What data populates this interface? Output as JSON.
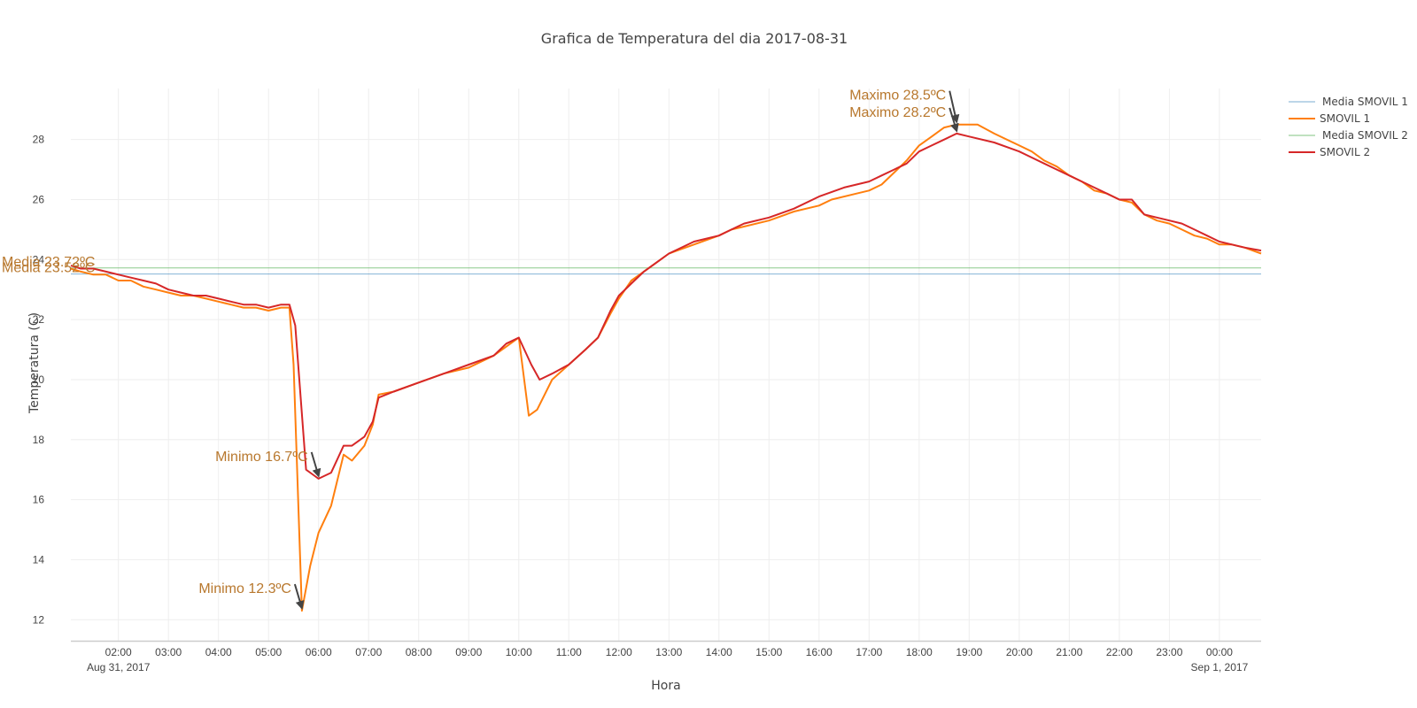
{
  "chart_data": {
    "type": "line",
    "title": "Grafica de Temperatura del dia 2017-08-31",
    "xlabel": "Hora",
    "ylabel": "Temperatura (C)",
    "xlim": [
      "2017-08-31T01:03",
      "2017-09-01T00:50"
    ],
    "ylim": [
      11.3,
      29.7
    ],
    "grid": true,
    "legend_position": "top-right",
    "x_ticks": [
      "02:00",
      "03:00",
      "04:00",
      "05:00",
      "06:00",
      "07:00",
      "08:00",
      "09:00",
      "10:00",
      "11:00",
      "12:00",
      "13:00",
      "14:00",
      "15:00",
      "16:00",
      "17:00",
      "18:00",
      "19:00",
      "20:00",
      "21:00",
      "22:00",
      "23:00",
      "00:00"
    ],
    "x_date_labels": [
      {
        "at": "2017-08-31T02:00",
        "text": "Aug 31, 2017"
      },
      {
        "at": "2017-09-01T00:00",
        "text": "Sep 1, 2017"
      }
    ],
    "y_ticks": [
      12,
      14,
      16,
      18,
      20,
      22,
      24,
      26,
      28
    ],
    "series": [
      {
        "name": "Media SMOVIL 1",
        "kind": "hline",
        "y": 23.52,
        "color": "#1f77b4",
        "y_repeat": false
      },
      {
        "name": "SMOVIL 1",
        "kind": "line",
        "color": "#ff7f0e",
        "points": [
          [
            "01:03",
            23.7
          ],
          [
            "01:15",
            23.6
          ],
          [
            "01:30",
            23.5
          ],
          [
            "01:45",
            23.5
          ],
          [
            "02:00",
            23.3
          ],
          [
            "02:15",
            23.3
          ],
          [
            "02:30",
            23.1
          ],
          [
            "02:45",
            23.0
          ],
          [
            "03:00",
            22.9
          ],
          [
            "03:15",
            22.8
          ],
          [
            "03:30",
            22.8
          ],
          [
            "03:45",
            22.7
          ],
          [
            "04:00",
            22.6
          ],
          [
            "04:15",
            22.5
          ],
          [
            "04:30",
            22.4
          ],
          [
            "04:45",
            22.4
          ],
          [
            "05:00",
            22.3
          ],
          [
            "05:15",
            22.4
          ],
          [
            "05:25",
            22.4
          ],
          [
            "05:30",
            20.5
          ],
          [
            "05:40",
            12.3
          ],
          [
            "05:50",
            13.8
          ],
          [
            "06:00",
            14.9
          ],
          [
            "06:15",
            15.8
          ],
          [
            "06:30",
            17.5
          ],
          [
            "06:40",
            17.3
          ],
          [
            "06:55",
            17.8
          ],
          [
            "07:05",
            18.5
          ],
          [
            "07:12",
            19.5
          ],
          [
            "07:30",
            19.6
          ],
          [
            "08:00",
            19.9
          ],
          [
            "08:30",
            20.2
          ],
          [
            "09:00",
            20.4
          ],
          [
            "09:30",
            20.8
          ],
          [
            "09:45",
            21.1
          ],
          [
            "10:00",
            21.4
          ],
          [
            "10:12",
            18.8
          ],
          [
            "10:22",
            19.0
          ],
          [
            "10:40",
            20.0
          ],
          [
            "11:00",
            20.5
          ],
          [
            "11:20",
            21.0
          ],
          [
            "11:35",
            21.4
          ],
          [
            "11:50",
            22.2
          ],
          [
            "12:00",
            22.7
          ],
          [
            "12:15",
            23.3
          ],
          [
            "12:30",
            23.6
          ],
          [
            "12:45",
            23.9
          ],
          [
            "13:00",
            24.2
          ],
          [
            "13:30",
            24.5
          ],
          [
            "14:00",
            24.8
          ],
          [
            "14:15",
            25.0
          ],
          [
            "14:30",
            25.1
          ],
          [
            "15:00",
            25.3
          ],
          [
            "15:30",
            25.6
          ],
          [
            "16:00",
            25.8
          ],
          [
            "16:15",
            26.0
          ],
          [
            "16:45",
            26.2
          ],
          [
            "17:00",
            26.3
          ],
          [
            "17:15",
            26.5
          ],
          [
            "17:30",
            26.9
          ],
          [
            "17:45",
            27.3
          ],
          [
            "18:00",
            27.8
          ],
          [
            "18:15",
            28.1
          ],
          [
            "18:30",
            28.4
          ],
          [
            "18:45",
            28.5
          ],
          [
            "19:10",
            28.5
          ],
          [
            "19:30",
            28.2
          ],
          [
            "20:00",
            27.8
          ],
          [
            "20:15",
            27.6
          ],
          [
            "20:30",
            27.3
          ],
          [
            "20:45",
            27.1
          ],
          [
            "21:00",
            26.8
          ],
          [
            "21:15",
            26.6
          ],
          [
            "21:30",
            26.3
          ],
          [
            "21:45",
            26.2
          ],
          [
            "22:00",
            26.0
          ],
          [
            "22:15",
            25.9
          ],
          [
            "22:30",
            25.5
          ],
          [
            "22:45",
            25.3
          ],
          [
            "23:00",
            25.2
          ],
          [
            "23:15",
            25.0
          ],
          [
            "23:30",
            24.8
          ],
          [
            "23:45",
            24.7
          ],
          [
            "00:00",
            24.5
          ],
          [
            "00:15",
            24.5
          ],
          [
            "00:30",
            24.4
          ],
          [
            "00:50",
            24.2
          ]
        ]
      },
      {
        "name": "Media SMOVIL 2",
        "kind": "hline",
        "y": 23.72,
        "color": "#2ca02c",
        "y_repeat": false
      },
      {
        "name": "SMOVIL 2",
        "kind": "line",
        "color": "#d62728",
        "points": [
          [
            "01:03",
            23.8
          ],
          [
            "01:15",
            23.7
          ],
          [
            "01:30",
            23.7
          ],
          [
            "01:45",
            23.6
          ],
          [
            "02:00",
            23.5
          ],
          [
            "02:15",
            23.4
          ],
          [
            "02:30",
            23.3
          ],
          [
            "02:45",
            23.2
          ],
          [
            "03:00",
            23.0
          ],
          [
            "03:15",
            22.9
          ],
          [
            "03:30",
            22.8
          ],
          [
            "03:45",
            22.8
          ],
          [
            "04:00",
            22.7
          ],
          [
            "04:15",
            22.6
          ],
          [
            "04:30",
            22.5
          ],
          [
            "04:45",
            22.5
          ],
          [
            "05:00",
            22.4
          ],
          [
            "05:15",
            22.5
          ],
          [
            "05:25",
            22.5
          ],
          [
            "05:32",
            21.8
          ],
          [
            "05:45",
            17.0
          ],
          [
            "05:55",
            16.8
          ],
          [
            "06:00",
            16.7
          ],
          [
            "06:15",
            16.9
          ],
          [
            "06:30",
            17.8
          ],
          [
            "06:40",
            17.8
          ],
          [
            "06:55",
            18.1
          ],
          [
            "07:05",
            18.6
          ],
          [
            "07:12",
            19.4
          ],
          [
            "07:30",
            19.6
          ],
          [
            "08:00",
            19.9
          ],
          [
            "08:30",
            20.2
          ],
          [
            "09:00",
            20.5
          ],
          [
            "09:30",
            20.8
          ],
          [
            "09:45",
            21.2
          ],
          [
            "10:00",
            21.4
          ],
          [
            "10:15",
            20.5
          ],
          [
            "10:25",
            20.0
          ],
          [
            "10:40",
            20.2
          ],
          [
            "11:00",
            20.5
          ],
          [
            "11:20",
            21.0
          ],
          [
            "11:35",
            21.4
          ],
          [
            "11:50",
            22.3
          ],
          [
            "12:00",
            22.8
          ],
          [
            "12:15",
            23.2
          ],
          [
            "12:30",
            23.6
          ],
          [
            "12:45",
            23.9
          ],
          [
            "13:00",
            24.2
          ],
          [
            "13:30",
            24.6
          ],
          [
            "14:00",
            24.8
          ],
          [
            "14:15",
            25.0
          ],
          [
            "14:30",
            25.2
          ],
          [
            "15:00",
            25.4
          ],
          [
            "15:30",
            25.7
          ],
          [
            "16:00",
            26.1
          ],
          [
            "16:30",
            26.4
          ],
          [
            "17:00",
            26.6
          ],
          [
            "17:15",
            26.8
          ],
          [
            "17:30",
            27.0
          ],
          [
            "17:45",
            27.2
          ],
          [
            "18:00",
            27.6
          ],
          [
            "18:15",
            27.8
          ],
          [
            "18:30",
            28.0
          ],
          [
            "18:45",
            28.2
          ],
          [
            "19:00",
            28.1
          ],
          [
            "19:30",
            27.9
          ],
          [
            "20:00",
            27.6
          ],
          [
            "20:15",
            27.4
          ],
          [
            "20:30",
            27.2
          ],
          [
            "20:45",
            27.0
          ],
          [
            "21:00",
            26.8
          ],
          [
            "21:15",
            26.6
          ],
          [
            "21:30",
            26.4
          ],
          [
            "21:45",
            26.2
          ],
          [
            "22:00",
            26.0
          ],
          [
            "22:15",
            26.0
          ],
          [
            "22:30",
            25.5
          ],
          [
            "22:45",
            25.4
          ],
          [
            "23:00",
            25.3
          ],
          [
            "23:15",
            25.2
          ],
          [
            "23:30",
            25.0
          ],
          [
            "23:45",
            24.8
          ],
          [
            "00:00",
            24.6
          ],
          [
            "00:15",
            24.5
          ],
          [
            "00:30",
            24.4
          ],
          [
            "00:50",
            24.3
          ]
        ]
      }
    ],
    "annotations": [
      {
        "text": "Maximo 28.5ºC",
        "x": "18:45",
        "y": 28.5,
        "color": "#b8782e"
      },
      {
        "text": "Maximo 28.2ºC",
        "x": "18:45",
        "y": 28.2,
        "color": "#b8782e"
      },
      {
        "text": "Minimo 16.7ºC",
        "x": "06:00",
        "y": 16.7,
        "color": "#b8782e"
      },
      {
        "text": "Minimo 12.3ºC",
        "x": "05:40",
        "y": 12.3,
        "color": "#b8782e"
      },
      {
        "text": "Media 23.72ºC",
        "y": 23.72,
        "color": "#b8782e",
        "side": "left"
      },
      {
        "text": "Media 23.52ºC",
        "y": 23.52,
        "color": "#b8782e",
        "side": "left"
      }
    ]
  }
}
